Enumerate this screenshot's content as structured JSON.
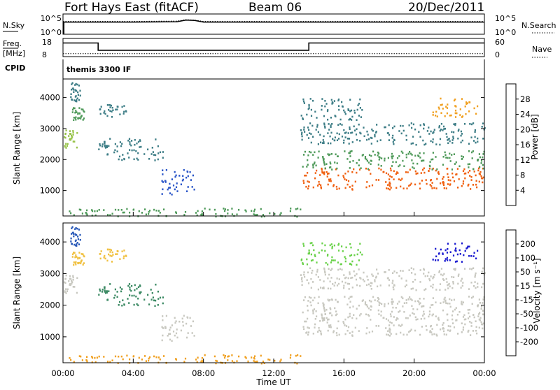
{
  "header": {
    "station": "Fort Hays East (fitACF)",
    "beam": "Beam 06",
    "date": "20/Dec/2011"
  },
  "noise_panel": {
    "left_label": "N.Sky",
    "left_ticks": [
      "10^5",
      "10^0"
    ],
    "right_ticks": [
      "10^5",
      "10^0"
    ],
    "right_label": "N.Search"
  },
  "freq_panel": {
    "left_label_top": "Freq.",
    "left_label_unit": "[MHz]",
    "left_ticks": [
      "18",
      "8"
    ],
    "right_ticks": [
      "60",
      "0"
    ],
    "right_label": "Nave"
  },
  "cpid_panel": {
    "label": "CPID",
    "mode": "themis 3300 IF"
  },
  "time_axis": {
    "label": "Time UT",
    "ticks": [
      "00:00",
      "04:00",
      "08:00",
      "12:00",
      "16:00",
      "20:00",
      "00:00"
    ]
  },
  "range_axis": {
    "label": "Slant Range [km]",
    "ticks": [
      "1000",
      "2000",
      "3000",
      "4000"
    ]
  },
  "power_scale": {
    "label": "Power [dB]",
    "ticks": [
      "4",
      "8",
      "12",
      "16",
      "20",
      "24",
      "28"
    ],
    "colors": [
      "#0000e0",
      "#2a55c8",
      "#3d7d86",
      "#4f9a5a",
      "#98c34a",
      "#f0e040",
      "#f0a020",
      "#f06010",
      "#e81010"
    ]
  },
  "velocity_scale": {
    "label": "Velocity [m s⁻¹]",
    "ticks": [
      "200",
      "100",
      "50",
      "15",
      "-15",
      "-50",
      "-100",
      "-200"
    ],
    "colors": [
      "#1a1ad0",
      "#2a5ab8",
      "#3c8a64",
      "#6ad24a",
      "#c8c8c0",
      "#f0c040",
      "#f0a020",
      "#f06018",
      "#e81010"
    ]
  },
  "chart_data": [
    {
      "type": "line",
      "title": "N.Sky / N.Search",
      "x": [
        0,
        4,
        6.5,
        7,
        7.5,
        8,
        12,
        16,
        20,
        24
      ],
      "series": [
        {
          "name": "N.Sky",
          "values": [
            1000,
            1000,
            1200,
            3000,
            2500,
            1000,
            1000,
            1000,
            1000,
            1000
          ]
        },
        {
          "name": "N.Search",
          "values": [
            1500,
            1500,
            1800,
            4000,
            3000,
            1500,
            1500,
            1500,
            1500,
            1500
          ]
        }
      ]
    },
    {
      "type": "line",
      "title": "Freq. / Nave",
      "x": [
        0,
        2,
        2,
        14,
        14,
        24
      ],
      "series": [
        {
          "name": "Freq.",
          "values": [
            15.5,
            15.5,
            11.5,
            11.5,
            15.5,
            15.5
          ]
        },
        {
          "name": "Nave",
          "values": [
            10,
            10,
            10,
            10,
            10,
            10
          ]
        }
      ]
    },
    {
      "type": "heatmap",
      "title": "Power",
      "xlabel": "Time UT",
      "ylabel": "Slant Range [km]",
      "ylim": [
        180,
        4600
      ],
      "xlim": [
        0,
        24
      ],
      "legend": "Power [dB]",
      "regions": [
        {
          "t_start": 0.0,
          "t_end": 0.8,
          "r_start": 2400,
          "r_end": 3000,
          "value": 16
        },
        {
          "t_start": 0.5,
          "t_end": 1.2,
          "r_start": 3300,
          "r_end": 3700,
          "value": 14
        },
        {
          "t_start": 0.4,
          "t_end": 1.0,
          "r_start": 3900,
          "r_end": 4500,
          "value": 8
        },
        {
          "t_start": 2.0,
          "t_end": 3.6,
          "r_start": 3400,
          "r_end": 3800,
          "value": 10
        },
        {
          "t_start": 2.0,
          "t_end": 5.8,
          "r_start": 2000,
          "r_end": 2700,
          "value": 8
        },
        {
          "t_start": 5.6,
          "t_end": 7.5,
          "r_start": 900,
          "r_end": 1700,
          "value": 6
        },
        {
          "t_start": 0.0,
          "t_end": 13.6,
          "r_start": 180,
          "r_end": 450,
          "value": 12
        },
        {
          "t_start": 13.6,
          "t_end": 24.0,
          "r_start": 1050,
          "r_end": 1750,
          "value": 28
        },
        {
          "t_start": 13.6,
          "t_end": 24.0,
          "r_start": 1700,
          "r_end": 2300,
          "value": 12
        },
        {
          "t_start": 13.5,
          "t_end": 24.0,
          "r_start": 2500,
          "r_end": 3200,
          "value": 10
        },
        {
          "t_start": 13.5,
          "t_end": 17.0,
          "r_start": 3300,
          "r_end": 4000,
          "value": 8
        },
        {
          "t_start": 21.0,
          "t_end": 23.6,
          "r_start": 3400,
          "r_end": 4000,
          "value": 22
        }
      ]
    },
    {
      "type": "heatmap",
      "title": "Velocity",
      "xlabel": "Time UT",
      "ylabel": "Slant Range [km]",
      "ylim": [
        180,
        4600
      ],
      "xlim": [
        0,
        24
      ],
      "legend": "Velocity [m s⁻¹]",
      "regions": [
        {
          "t_start": 0.0,
          "t_end": 0.8,
          "r_start": 2400,
          "r_end": 3000,
          "value": 0
        },
        {
          "t_start": 0.5,
          "t_end": 1.2,
          "r_start": 3300,
          "r_end": 3700,
          "value": -40
        },
        {
          "t_start": 0.4,
          "t_end": 1.0,
          "r_start": 3900,
          "r_end": 4500,
          "value": 150
        },
        {
          "t_start": 2.0,
          "t_end": 3.6,
          "r_start": 3400,
          "r_end": 3800,
          "value": -20
        },
        {
          "t_start": 2.0,
          "t_end": 5.8,
          "r_start": 2000,
          "r_end": 2700,
          "value": 60
        },
        {
          "t_start": 5.6,
          "t_end": 7.5,
          "r_start": 900,
          "r_end": 1700,
          "value": 0
        },
        {
          "t_start": 0.0,
          "t_end": 13.6,
          "r_start": 180,
          "r_end": 450,
          "value": -60
        },
        {
          "t_start": 13.6,
          "t_end": 24.0,
          "r_start": 1050,
          "r_end": 1750,
          "value": 0
        },
        {
          "t_start": 13.6,
          "t_end": 24.0,
          "r_start": 1700,
          "r_end": 2300,
          "value": 0
        },
        {
          "t_start": 13.5,
          "t_end": 24.0,
          "r_start": 2500,
          "r_end": 3200,
          "value": 0
        },
        {
          "t_start": 13.5,
          "t_end": 17.0,
          "r_start": 3300,
          "r_end": 4000,
          "value": 30
        },
        {
          "t_start": 21.0,
          "t_end": 23.6,
          "r_start": 3400,
          "r_end": 4000,
          "value": 200
        }
      ]
    }
  ]
}
